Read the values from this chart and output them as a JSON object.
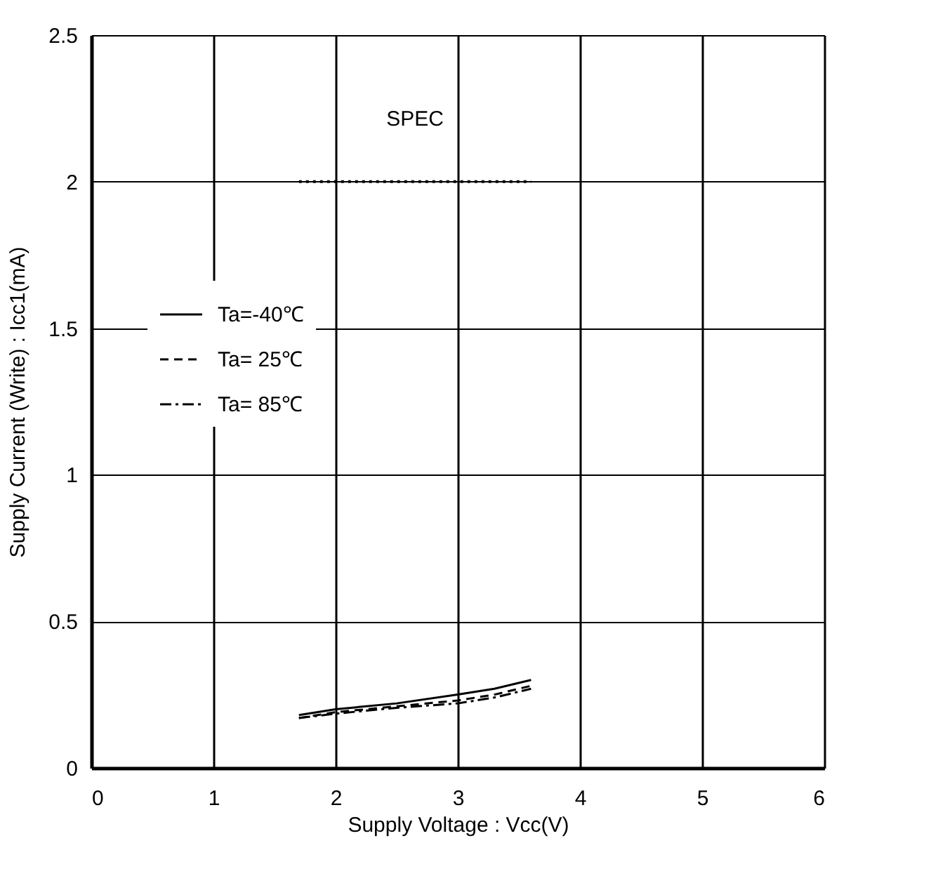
{
  "chart_data": {
    "type": "line",
    "xlabel": "Supply Voltage : Vcc(V)",
    "ylabel": "Supply Current (Write) : Icc1(mA)",
    "xlim": [
      0,
      6
    ],
    "xticks": [
      0,
      1,
      2,
      3,
      4,
      5,
      6
    ],
    "ylim": [
      0,
      2.5
    ],
    "yticks": [
      0,
      0.5,
      1,
      1.5,
      2,
      2.5
    ],
    "grid": true,
    "legend": "left",
    "annotations": [
      {
        "text": "SPEC",
        "x": 2.65,
        "y": 2
      }
    ],
    "series": [
      {
        "name": "Ta=-40℃",
        "color": "#000000",
        "line_style": "solid",
        "x": [
          1.7,
          2.0,
          2.5,
          3.0,
          3.3,
          3.6
        ],
        "values": [
          0.18,
          0.2,
          0.22,
          0.25,
          0.27,
          0.3
        ]
      },
      {
        "name": "Ta= 25℃",
        "color": "#000000",
        "line_style": "dashed",
        "x": [
          1.7,
          2.0,
          2.5,
          3.0,
          3.3,
          3.6
        ],
        "values": [
          0.17,
          0.19,
          0.21,
          0.23,
          0.25,
          0.28
        ]
      },
      {
        "name": "Ta= 85℃",
        "color": "#000000",
        "line_style": "dashdot",
        "x": [
          1.7,
          2.0,
          2.5,
          3.0,
          3.3,
          3.6
        ],
        "values": [
          0.17,
          0.185,
          0.205,
          0.22,
          0.24,
          0.27
        ]
      },
      {
        "color": "#000000",
        "line_style": "dotted",
        "x": [
          1.7,
          3.6
        ],
        "values": [
          2,
          2
        ]
      }
    ]
  }
}
